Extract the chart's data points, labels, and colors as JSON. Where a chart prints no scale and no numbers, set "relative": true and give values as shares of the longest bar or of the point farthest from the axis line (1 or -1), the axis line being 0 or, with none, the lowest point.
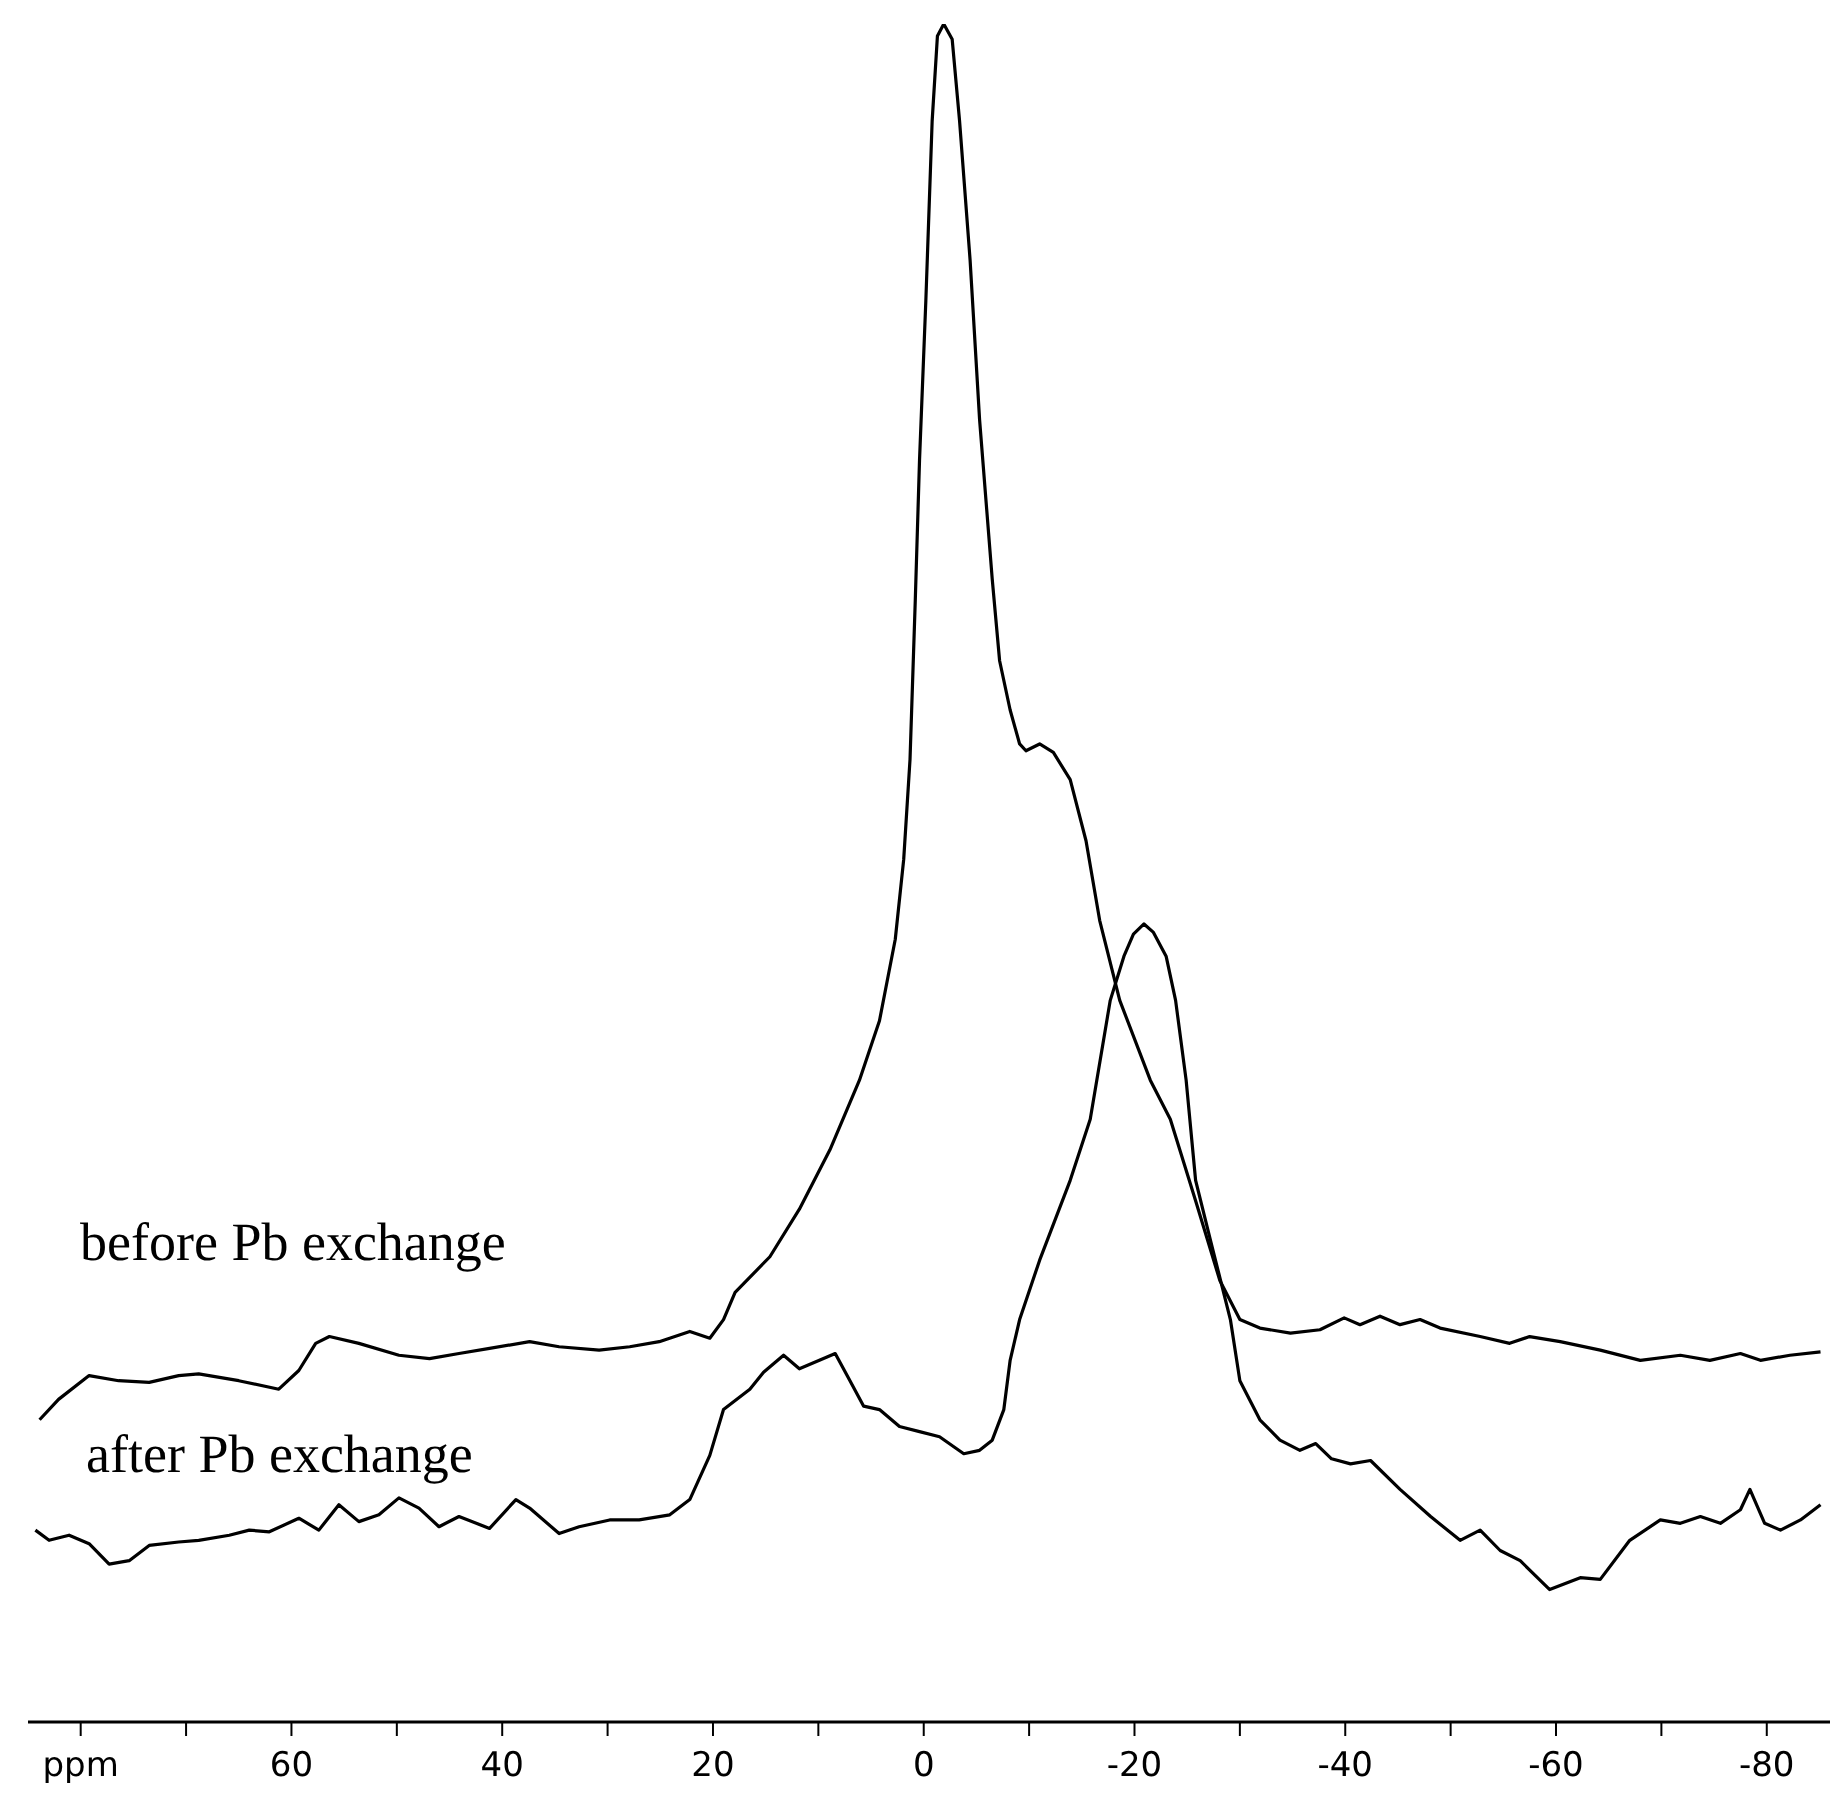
{
  "chart_data": {
    "type": "line",
    "relative": true,
    "xlim": [
      85,
      -86
    ],
    "xticks": [
      {
        "value": 80,
        "label": "ppm"
      },
      {
        "value": 70,
        "label": null
      },
      60,
      {
        "value": 50,
        "label": null
      },
      40,
      {
        "value": 30,
        "label": null
      },
      20,
      {
        "value": 10,
        "label": null
      },
      0,
      {
        "value": -10,
        "label": null
      },
      -20,
      {
        "value": -30,
        "label": null
      },
      -40,
      {
        "value": -50,
        "label": null
      },
      -60,
      {
        "value": -70,
        "label": null
      },
      -80
    ],
    "series": [
      {
        "name": "before Pb exchange",
        "color": "#000000",
        "x": [
          83.9,
          82.1,
          79.2,
          76.4,
          73.5,
          70.7,
          68.8,
          65.0,
          61.2,
          59.3,
          57.7,
          56.4,
          53.6,
          49.8,
          46.9,
          44.1,
          41.2,
          37.4,
          34.6,
          30.8,
          27.9,
          25.1,
          22.2,
          20.3,
          19.0,
          17.9,
          14.6,
          11.8,
          8.9,
          6.1,
          4.2,
          2.7,
          1.9,
          1.3,
          0.8,
          0.4,
          -0.2,
          -0.8,
          -1.3,
          -1.9,
          -2.7,
          -3.4,
          -4.4,
          -5.3,
          -6.5,
          -7.2,
          -8.2,
          -9.1,
          -9.7,
          -11.0,
          -12.3,
          -13.9,
          -15.4,
          -16.7,
          -18.6,
          -21.5,
          -23.4,
          -25.8,
          -28.1,
          -30.0,
          -31.9,
          -34.8,
          -37.6,
          -39.9,
          -41.4,
          -43.3,
          -45.2,
          -47.1,
          -49.0,
          -52.8,
          -55.6,
          -57.5,
          -60.4,
          -64.2,
          -68.0,
          -71.8,
          -74.6,
          -77.5,
          -79.4,
          -82.2,
          -85.1
        ],
        "values": [
          0.178,
          0.19,
          0.204,
          0.201,
          0.2,
          0.204,
          0.205,
          0.201,
          0.196,
          0.207,
          0.223,
          0.227,
          0.223,
          0.216,
          0.214,
          0.217,
          0.22,
          0.224,
          0.221,
          0.219,
          0.221,
          0.224,
          0.23,
          0.226,
          0.237,
          0.253,
          0.274,
          0.302,
          0.337,
          0.378,
          0.413,
          0.461,
          0.508,
          0.567,
          0.661,
          0.743,
          0.837,
          0.943,
          0.993,
          1.0,
          0.991,
          0.943,
          0.861,
          0.767,
          0.673,
          0.625,
          0.596,
          0.576,
          0.572,
          0.576,
          0.571,
          0.555,
          0.519,
          0.472,
          0.425,
          0.378,
          0.355,
          0.307,
          0.26,
          0.237,
          0.232,
          0.229,
          0.231,
          0.238,
          0.234,
          0.239,
          0.234,
          0.237,
          0.232,
          0.227,
          0.223,
          0.227,
          0.224,
          0.219,
          0.213,
          0.216,
          0.213,
          0.217,
          0.213,
          0.216,
          0.218
        ]
      },
      {
        "name": "after Pb exchange",
        "color": "#000000",
        "x": [
          84.3,
          83.0,
          81.1,
          79.2,
          77.3,
          75.4,
          73.5,
          70.7,
          68.8,
          65.9,
          64.0,
          62.1,
          59.3,
          57.4,
          55.5,
          53.6,
          51.7,
          49.8,
          47.9,
          46.0,
          44.1,
          41.2,
          38.7,
          37.4,
          34.6,
          32.7,
          29.8,
          27.0,
          24.1,
          22.2,
          20.3,
          19.0,
          16.5,
          15.2,
          13.3,
          11.8,
          9.9,
          8.4,
          7.0,
          5.7,
          4.2,
          2.3,
          0.4,
          -1.5,
          -3.8,
          -5.3,
          -6.5,
          -7.6,
          -8.2,
          -9.1,
          -11.0,
          -13.9,
          -15.8,
          -17.7,
          -19.0,
          -19.9,
          -20.9,
          -21.8,
          -23.0,
          -23.9,
          -24.9,
          -25.8,
          -27.2,
          -29.1,
          -30.0,
          -31.9,
          -33.8,
          -35.7,
          -37.2,
          -38.7,
          -40.5,
          -42.4,
          -45.2,
          -48.1,
          -50.9,
          -52.8,
          -54.7,
          -56.6,
          -59.4,
          -62.3,
          -64.2,
          -67.0,
          -69.9,
          -71.8,
          -73.7,
          -75.6,
          -77.5,
          -78.4,
          -79.8,
          -81.3,
          -83.2,
          -85.1
        ],
        "values": [
          0.113,
          0.107,
          0.11,
          0.105,
          0.093,
          0.095,
          0.104,
          0.106,
          0.107,
          0.11,
          0.113,
          0.112,
          0.12,
          0.113,
          0.128,
          0.118,
          0.122,
          0.132,
          0.126,
          0.115,
          0.121,
          0.114,
          0.131,
          0.126,
          0.111,
          0.115,
          0.119,
          0.119,
          0.122,
          0.131,
          0.157,
          0.184,
          0.196,
          0.206,
          0.216,
          0.208,
          0.213,
          0.217,
          0.201,
          0.186,
          0.184,
          0.174,
          0.171,
          0.168,
          0.158,
          0.16,
          0.166,
          0.184,
          0.213,
          0.237,
          0.272,
          0.319,
          0.355,
          0.425,
          0.451,
          0.464,
          0.47,
          0.465,
          0.451,
          0.425,
          0.378,
          0.319,
          0.284,
          0.237,
          0.201,
          0.178,
          0.166,
          0.16,
          0.164,
          0.155,
          0.152,
          0.154,
          0.137,
          0.121,
          0.107,
          0.113,
          0.101,
          0.095,
          0.078,
          0.085,
          0.084,
          0.107,
          0.119,
          0.117,
          0.121,
          0.117,
          0.125,
          0.137,
          0.117,
          0.113,
          0.119,
          0.128
        ]
      }
    ]
  }
}
